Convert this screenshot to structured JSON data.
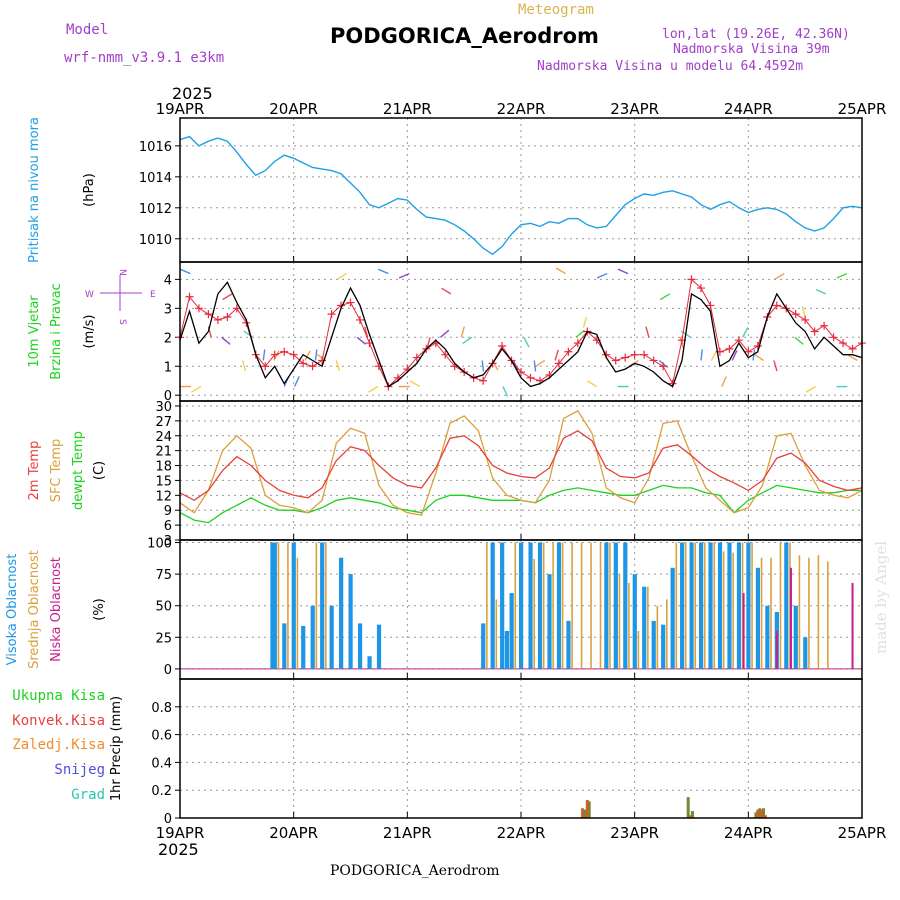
{
  "header": {
    "model_label": "Model",
    "model_name": "wrf-nmm_v3.9.1  e3km",
    "subtitle": "Meteogram",
    "station": "PODGORICA_Aerodrom",
    "lonlat": "lon,lat (19.26E, 42.36N)",
    "elevation": "Nadmorska Visina 39m",
    "model_elevation": "Nadmorska Visina u modelu 64.4592m",
    "year": "2025",
    "footer_station": "PODGORICA_Aerodrom",
    "watermark": "made by Angel"
  },
  "dates": [
    "19APR",
    "20APR",
    "21APR",
    "22APR",
    "23APR",
    "24APR",
    "25APR"
  ],
  "colors": {
    "pressure": "#1ea0e6",
    "wind_speed": "#000000",
    "wind_gust": "#e8283c",
    "temp2m": "#e8403c",
    "sfc_temp": "#dca03c",
    "dewpt": "#1ed21e",
    "cloud_high": "#1e96e6",
    "cloud_mid": "#dca03c",
    "cloud_low": "#c81e8c",
    "precip_total": "#1ed21e",
    "precip_conv": "#e8403c",
    "precip_frozen": "#f08c28",
    "snow": "#5050dc",
    "hail": "#28c8b4"
  },
  "chart_data": [
    {
      "type": "line",
      "name": "pressure",
      "ylabel": [
        "Pritisak na nivou mora",
        "(hPa)"
      ],
      "ylim": [
        1008.5,
        1017.8
      ],
      "yticks": [
        1010,
        1012,
        1014,
        1016
      ],
      "x_hours": [
        0,
        2,
        4,
        6,
        8,
        10,
        12,
        14,
        16,
        18,
        20,
        22,
        24,
        26,
        28,
        30,
        32,
        34,
        36,
        38,
        40,
        42,
        44,
        46,
        48,
        50,
        52,
        54,
        56,
        58,
        60,
        62,
        64,
        66,
        68,
        70,
        72,
        74,
        76,
        78,
        80,
        82,
        84,
        86,
        88,
        90,
        92,
        94,
        96,
        98,
        100,
        102,
        104,
        106,
        108,
        110,
        112,
        114,
        116,
        118,
        120,
        122,
        124,
        126,
        128,
        130,
        132,
        134,
        136,
        138,
        140,
        142,
        144
      ],
      "values": [
        1016.4,
        1016.6,
        1016.0,
        1016.3,
        1016.5,
        1016.3,
        1015.6,
        1014.8,
        1014.1,
        1014.4,
        1015.0,
        1015.4,
        1015.2,
        1014.9,
        1014.6,
        1014.5,
        1014.4,
        1014.2,
        1013.6,
        1013.0,
        1012.2,
        1012.0,
        1012.3,
        1012.6,
        1012.5,
        1011.9,
        1011.4,
        1011.3,
        1011.2,
        1010.9,
        1010.5,
        1010.0,
        1009.4,
        1009.0,
        1009.5,
        1010.3,
        1010.9,
        1011.0,
        1010.8,
        1011.1,
        1011.0,
        1011.3,
        1011.3,
        1010.9,
        1010.7,
        1010.8,
        1011.5,
        1012.2,
        1012.6,
        1012.9,
        1012.8,
        1013.0,
        1013.1,
        1012.9,
        1012.7,
        1012.2,
        1011.9,
        1012.2,
        1012.4,
        1012.0,
        1011.7,
        1011.9,
        1012.0,
        1011.9,
        1011.6,
        1011.1,
        1010.7,
        1010.5,
        1010.7,
        1011.3,
        1012.0,
        1012.1,
        1012.0
      ]
    },
    {
      "type": "line",
      "name": "wind",
      "ylabel": [
        "10m Vjetar",
        "Brzina i Pravac",
        "(m/s)"
      ],
      "compass": [
        "W",
        "E",
        "N",
        "S"
      ],
      "ylim": [
        -0.2,
        4.6
      ],
      "yticks": [
        0,
        1,
        2,
        3,
        4
      ],
      "x_hours": [
        0,
        2,
        4,
        6,
        8,
        10,
        12,
        14,
        16,
        18,
        20,
        22,
        24,
        26,
        28,
        30,
        32,
        34,
        36,
        38,
        40,
        42,
        44,
        46,
        48,
        50,
        52,
        54,
        56,
        58,
        60,
        62,
        64,
        66,
        68,
        70,
        72,
        74,
        76,
        78,
        80,
        82,
        84,
        86,
        88,
        90,
        92,
        94,
        96,
        98,
        100,
        102,
        104,
        106,
        108,
        110,
        112,
        114,
        116,
        118,
        120,
        122,
        124,
        126,
        128,
        130,
        132,
        134,
        136,
        138,
        140,
        142,
        144
      ],
      "series": [
        {
          "name": "speed",
          "values": [
            1.9,
            2.9,
            1.8,
            2.2,
            3.5,
            3.9,
            3.2,
            2.6,
            1.4,
            0.6,
            1.0,
            0.4,
            0.9,
            1.4,
            1.2,
            1.0,
            2.0,
            3.0,
            3.7,
            3.1,
            2.1,
            1.2,
            0.3,
            0.5,
            0.8,
            1.1,
            1.6,
            1.9,
            1.6,
            1.1,
            0.8,
            0.6,
            0.7,
            1.1,
            1.6,
            1.2,
            0.6,
            0.3,
            0.4,
            0.6,
            0.9,
            1.2,
            1.5,
            2.2,
            2.1,
            1.3,
            0.8,
            0.9,
            1.1,
            1.0,
            0.8,
            0.5,
            0.3,
            1.2,
            3.5,
            3.3,
            2.9,
            1.0,
            1.2,
            1.8,
            1.3,
            1.5,
            2.7,
            3.5,
            3.0,
            2.5,
            2.2,
            1.6,
            2.0,
            1.7,
            1.4,
            1.4,
            1.3
          ]
        },
        {
          "name": "gust",
          "values": [
            2.0,
            3.4,
            3.0,
            2.8,
            2.6,
            2.7,
            3.0,
            2.5,
            1.4,
            1.0,
            1.4,
            1.5,
            1.4,
            1.1,
            1.0,
            1.2,
            2.8,
            3.1,
            3.2,
            2.6,
            1.8,
            1.0,
            0.3,
            0.6,
            0.9,
            1.3,
            1.6,
            1.8,
            1.4,
            1.0,
            0.8,
            0.6,
            0.5,
            1.1,
            1.7,
            1.2,
            0.8,
            0.6,
            0.5,
            0.7,
            1.1,
            1.5,
            1.8,
            2.2,
            1.9,
            1.4,
            1.2,
            1.3,
            1.4,
            1.4,
            1.2,
            1.0,
            0.4,
            1.9,
            4.0,
            3.7,
            3.1,
            1.5,
            1.6,
            1.9,
            1.5,
            1.7,
            2.7,
            3.1,
            3.0,
            2.8,
            2.6,
            2.2,
            2.4,
            2.0,
            1.8,
            1.6,
            1.8
          ]
        }
      ]
    },
    {
      "type": "line",
      "name": "temperature",
      "ylabel": [
        "2m Temp",
        "SFC Temp",
        "dewpt Temp",
        "(C)"
      ],
      "ylim": [
        3,
        31
      ],
      "yticks": [
        3,
        6,
        9,
        12,
        15,
        18,
        21,
        24,
        27,
        30
      ],
      "x_hours": [
        0,
        3,
        6,
        9,
        12,
        15,
        18,
        21,
        24,
        27,
        30,
        33,
        36,
        39,
        42,
        45,
        48,
        51,
        54,
        57,
        60,
        63,
        66,
        69,
        72,
        75,
        78,
        81,
        84,
        87,
        90,
        93,
        96,
        99,
        102,
        105,
        108,
        111,
        114,
        117,
        120,
        123,
        126,
        129,
        132,
        135,
        138,
        141,
        144
      ],
      "series": [
        {
          "name": "2m Temp",
          "values": [
            12.5,
            11.0,
            13.0,
            17.0,
            19.8,
            18.0,
            15.0,
            13.0,
            12.0,
            11.5,
            13.5,
            19.0,
            21.8,
            21.0,
            18.0,
            15.5,
            14.0,
            13.5,
            17.5,
            23.5,
            24.0,
            22.0,
            18.0,
            16.5,
            15.8,
            15.5,
            17.5,
            23.5,
            25.0,
            23.0,
            17.5,
            15.8,
            15.5,
            16.5,
            21.5,
            22.2,
            20.0,
            17.5,
            15.8,
            14.5,
            13.0,
            15.0,
            19.5,
            20.5,
            18.5,
            15.0,
            13.8,
            13.0,
            13.5
          ]
        },
        {
          "name": "SFC Temp",
          "values": [
            10.5,
            8.5,
            13.0,
            21.0,
            24.0,
            21.5,
            12.0,
            10.0,
            9.5,
            8.5,
            11.0,
            22.5,
            25.5,
            24.5,
            14.0,
            10.0,
            8.5,
            8.0,
            16.5,
            26.5,
            28.0,
            25.0,
            15.5,
            12.0,
            11.0,
            10.5,
            15.0,
            27.5,
            29.0,
            24.5,
            13.5,
            11.5,
            10.5,
            15.5,
            26.5,
            27.0,
            20.0,
            13.5,
            11.0,
            8.5,
            9.5,
            14.0,
            24.0,
            24.5,
            18.0,
            13.0,
            12.0,
            11.5,
            13.0
          ]
        },
        {
          "name": "dewpt Temp",
          "values": [
            8.5,
            7.0,
            6.5,
            8.5,
            10.0,
            11.5,
            10.0,
            9.0,
            9.0,
            8.5,
            9.5,
            11.0,
            11.5,
            11.0,
            10.5,
            9.5,
            9.0,
            8.5,
            11.0,
            12.0,
            12.0,
            11.5,
            11.0,
            11.0,
            11.0,
            10.5,
            12.0,
            13.0,
            13.5,
            13.0,
            12.5,
            12.0,
            12.0,
            13.0,
            14.0,
            13.5,
            13.5,
            12.5,
            12.0,
            8.5,
            11.0,
            12.5,
            14.0,
            13.5,
            13.0,
            12.5,
            12.5,
            13.0,
            13.0
          ]
        }
      ]
    },
    {
      "type": "bar",
      "name": "clouds",
      "ylabel": [
        "Visoka Oblacnost",
        "Srednja Oblacnost",
        "Niska Oblacnost",
        "(%)"
      ],
      "ylim": [
        -8,
        102
      ],
      "yticks": [
        0,
        25,
        50,
        75,
        100
      ],
      "series": [
        {
          "name": "Visoka Oblacnost",
          "bars": [
            [
              19.5,
              100
            ],
            [
              20,
              100
            ],
            [
              22,
              36
            ],
            [
              24,
              100
            ],
            [
              26,
              34
            ],
            [
              28,
              50
            ],
            [
              30,
              100
            ],
            [
              32,
              50
            ],
            [
              34,
              88
            ],
            [
              36,
              75
            ],
            [
              38,
              36
            ],
            [
              40,
              10
            ],
            [
              42,
              35
            ],
            [
              64,
              36
            ],
            [
              66,
              100
            ],
            [
              68,
              100
            ],
            [
              69,
              30
            ],
            [
              70,
              60
            ],
            [
              72,
              100
            ],
            [
              74,
              100
            ],
            [
              76,
              100
            ],
            [
              78,
              75
            ],
            [
              80,
              100
            ],
            [
              82,
              38
            ],
            [
              90,
              100
            ],
            [
              92,
              100
            ],
            [
              94,
              100
            ],
            [
              96,
              75
            ],
            [
              98,
              65
            ],
            [
              100,
              38
            ],
            [
              102,
              35
            ],
            [
              104,
              80
            ],
            [
              106,
              100
            ],
            [
              108,
              100
            ],
            [
              110,
              100
            ],
            [
              112,
              100
            ],
            [
              114,
              100
            ],
            [
              116,
              100
            ],
            [
              118,
              100
            ],
            [
              120,
              100
            ],
            [
              122,
              80
            ],
            [
              124,
              50
            ],
            [
              126,
              45
            ],
            [
              128,
              100
            ],
            [
              130,
              50
            ],
            [
              132,
              25
            ]
          ]
        },
        {
          "name": "Srednja Oblacnost",
          "bars": [
            [
              21,
              100
            ],
            [
              23,
              100
            ],
            [
              25,
              88
            ],
            [
              29,
              100
            ],
            [
              31,
              100
            ],
            [
              65,
              100
            ],
            [
              67,
              55
            ],
            [
              71,
              100
            ],
            [
              75,
              87
            ],
            [
              77,
              100
            ],
            [
              79,
              100
            ],
            [
              81,
              100
            ],
            [
              83,
              100
            ],
            [
              85,
              100
            ],
            [
              87,
              100
            ],
            [
              89,
              100
            ],
            [
              91,
              100
            ],
            [
              93,
              75
            ],
            [
              95,
              68
            ],
            [
              97,
              30
            ],
            [
              99,
              65
            ],
            [
              101,
              50
            ],
            [
              103,
              55
            ],
            [
              105,
              100
            ],
            [
              107,
              100
            ],
            [
              109,
              100
            ],
            [
              111,
              100
            ],
            [
              113,
              100
            ],
            [
              115,
              93
            ],
            [
              117,
              92
            ],
            [
              119,
              100
            ],
            [
              121,
              100
            ],
            [
              123,
              88
            ],
            [
              125,
              88
            ],
            [
              127,
              100
            ],
            [
              129,
              100
            ],
            [
              131,
              90
            ],
            [
              133,
              88
            ],
            [
              135,
              90
            ],
            [
              137,
              85
            ]
          ]
        },
        {
          "name": "Niska Oblacnost",
          "bars": [
            [
              119,
              60
            ],
            [
              126,
              30
            ],
            [
              129,
              80
            ],
            [
              142,
              68
            ]
          ]
        }
      ]
    },
    {
      "type": "bar",
      "name": "precipitation",
      "ylabel": [
        "1hr Precip (mm)"
      ],
      "legend": [
        "Ukupna Kisa",
        "Konvek.Kisa",
        "Zaledj.Kisa",
        "Snijeg",
        "Grad"
      ],
      "ylim": [
        0,
        1.0
      ],
      "yticks": [
        0,
        0.2,
        0.4,
        0.6,
        0.8
      ],
      "series": [
        {
          "name": "Ukupna Kisa",
          "bars": [
            [
              85.5,
              0.06
            ],
            [
              86.4,
              0.12
            ],
            [
              107.3,
              0.15
            ],
            [
              108.2,
              0.05
            ],
            [
              121.6,
              0.04
            ],
            [
              122.4,
              0.07
            ],
            [
              123.2,
              0.07
            ]
          ]
        },
        {
          "name": "Konvek.Kisa",
          "bars": [
            [
              85.0,
              0.07
            ],
            [
              86.0,
              0.13
            ],
            [
              107.8,
              0.02
            ],
            [
              122.0,
              0.06
            ],
            [
              122.8,
              0.06
            ],
            [
              123.6,
              0.02
            ]
          ]
        }
      ]
    }
  ]
}
